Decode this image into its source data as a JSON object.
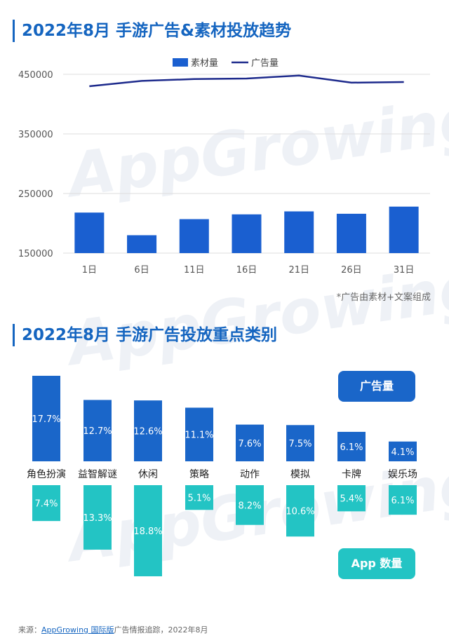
{
  "title1": "2022年8月 手游广告&素材投放趋势",
  "title2": "2022年8月 手游广告投放重点类别",
  "note": "*广告由素材+文案组成",
  "watermark": "AppGrowing",
  "badges": {
    "ads": "广告量",
    "apps": "App 数量"
  },
  "source": {
    "prefix": "来源：",
    "link": "AppGrowing 国际版",
    "suffix": "广告情报追踪，2022年8月"
  },
  "colors": {
    "bar": "#1a5fd0",
    "line": "#1d2a8c",
    "cat_ads": "#1a66c9",
    "cat_apps": "#23c4c4",
    "title": "#1565c0"
  },
  "chart_data": [
    {
      "type": "bar",
      "title": "2022年8月 手游广告&素材投放趋势",
      "categories": [
        "1日",
        "6日",
        "11日",
        "16日",
        "21日",
        "26日",
        "31日"
      ],
      "ylim": [
        150000,
        450000
      ],
      "yticks": [
        "450000",
        "350000",
        "250000",
        "150000"
      ],
      "grid": true,
      "legend": "top-center",
      "series": [
        {
          "name": "素材量",
          "kind": "bar",
          "values": [
            218000,
            180000,
            207000,
            215000,
            220000,
            216000,
            228000
          ]
        },
        {
          "name": "广告量",
          "kind": "line",
          "values": [
            430000,
            439000,
            442000,
            443000,
            448000,
            436000,
            437000
          ]
        }
      ]
    },
    {
      "type": "bar",
      "title": "2022年8月 手游广告投放重点类别",
      "categories": [
        "角色扮演",
        "益智解谜",
        "休闲",
        "策略",
        "动作",
        "模拟",
        "卡牌",
        "娱乐场"
      ],
      "series": [
        {
          "name": "广告量",
          "values": [
            17.7,
            12.7,
            12.6,
            11.1,
            7.6,
            7.5,
            6.1,
            4.1
          ],
          "labels": [
            "17.7%",
            "12.7%",
            "12.6%",
            "11.1%",
            "7.6%",
            "7.5%",
            "6.1%",
            "4.1%"
          ]
        },
        {
          "name": "App 数量",
          "values": [
            7.4,
            13.3,
            18.8,
            5.1,
            8.2,
            10.6,
            5.4,
            6.1
          ],
          "labels": [
            "7.4%",
            "13.3%",
            "18.8%",
            "5.1%",
            "8.2%",
            "10.6%",
            "5.4%",
            "6.1%"
          ]
        }
      ]
    }
  ]
}
